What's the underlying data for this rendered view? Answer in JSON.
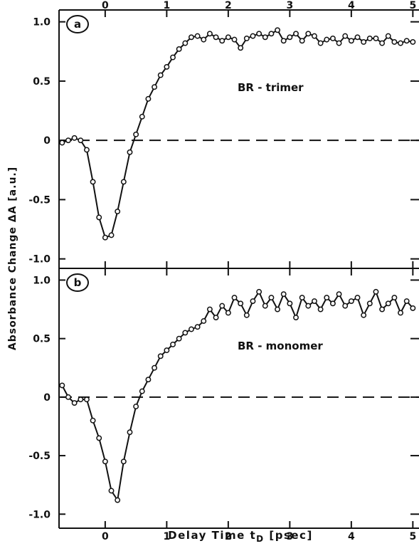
{
  "chart_data": {
    "type": "line",
    "xlabel": "Delay Time  t",
    "xlabel_sub": "D",
    "xlabel_unit": " [psec]",
    "ylabel": "Absorbance Change  ΔA [a.u.]",
    "xlim": [
      -0.75,
      5.1
    ],
    "x_ticks": [
      0,
      1,
      2,
      3,
      4,
      5
    ],
    "panels": [
      {
        "id": "a",
        "tag": "a",
        "annotation": "BR - trimer",
        "ylim": [
          -1.08,
          1.1
        ],
        "y_ticks": [
          1.0,
          0.5,
          0,
          -0.5,
          -1.0
        ],
        "y_tick_labels": [
          "1.0",
          "0.5",
          "0",
          "-0.5",
          "-1.0"
        ],
        "zero_line": true,
        "x": [
          -0.7,
          -0.6,
          -0.5,
          -0.4,
          -0.3,
          -0.2,
          -0.1,
          0.0,
          0.1,
          0.2,
          0.3,
          0.4,
          0.5,
          0.6,
          0.7,
          0.8,
          0.9,
          1.0,
          1.1,
          1.2,
          1.3,
          1.4,
          1.5,
          1.6,
          1.7,
          1.8,
          1.9,
          2.0,
          2.1,
          2.2,
          2.3,
          2.4,
          2.5,
          2.6,
          2.7,
          2.8,
          2.9,
          3.0,
          3.1,
          3.2,
          3.3,
          3.4,
          3.5,
          3.6,
          3.7,
          3.8,
          3.9,
          4.0,
          4.1,
          4.2,
          4.3,
          4.4,
          4.5,
          4.6,
          4.7,
          4.8,
          4.9,
          5.0
        ],
        "y": [
          -0.02,
          0.0,
          0.02,
          0.0,
          -0.08,
          -0.35,
          -0.65,
          -0.82,
          -0.8,
          -0.6,
          -0.35,
          -0.1,
          0.05,
          0.2,
          0.35,
          0.45,
          0.55,
          0.62,
          0.7,
          0.77,
          0.82,
          0.87,
          0.88,
          0.85,
          0.9,
          0.87,
          0.84,
          0.87,
          0.85,
          0.78,
          0.86,
          0.88,
          0.9,
          0.87,
          0.9,
          0.93,
          0.84,
          0.87,
          0.9,
          0.84,
          0.9,
          0.88,
          0.82,
          0.85,
          0.86,
          0.82,
          0.88,
          0.84,
          0.87,
          0.83,
          0.86,
          0.86,
          0.82,
          0.88,
          0.83,
          0.82,
          0.84,
          0.83
        ]
      },
      {
        "id": "b",
        "tag": "b",
        "annotation": "BR - monomer",
        "ylim": [
          -1.12,
          1.1
        ],
        "y_ticks": [
          1.0,
          0.5,
          0,
          -0.5,
          -1.0
        ],
        "y_tick_labels": [
          "1.0",
          "0.5",
          "0",
          "-0.5",
          "-1.0"
        ],
        "zero_line": true,
        "x": [
          -0.7,
          -0.6,
          -0.5,
          -0.4,
          -0.3,
          -0.2,
          -0.1,
          0.0,
          0.1,
          0.2,
          0.3,
          0.4,
          0.5,
          0.6,
          0.7,
          0.8,
          0.9,
          1.0,
          1.1,
          1.2,
          1.3,
          1.4,
          1.5,
          1.6,
          1.7,
          1.8,
          1.9,
          2.0,
          2.1,
          2.2,
          2.3,
          2.4,
          2.5,
          2.6,
          2.7,
          2.8,
          2.9,
          3.0,
          3.1,
          3.2,
          3.3,
          3.4,
          3.5,
          3.6,
          3.7,
          3.8,
          3.9,
          4.0,
          4.1,
          4.2,
          4.3,
          4.4,
          4.5,
          4.6,
          4.7,
          4.8,
          4.9,
          5.0
        ],
        "y": [
          0.1,
          0.0,
          -0.05,
          -0.02,
          -0.02,
          -0.2,
          -0.35,
          -0.55,
          -0.8,
          -0.88,
          -0.55,
          -0.3,
          -0.08,
          0.05,
          0.15,
          0.25,
          0.35,
          0.4,
          0.45,
          0.5,
          0.55,
          0.58,
          0.6,
          0.65,
          0.75,
          0.68,
          0.78,
          0.72,
          0.85,
          0.8,
          0.7,
          0.82,
          0.9,
          0.78,
          0.85,
          0.75,
          0.88,
          0.8,
          0.68,
          0.85,
          0.78,
          0.82,
          0.75,
          0.85,
          0.8,
          0.88,
          0.78,
          0.82,
          0.85,
          0.7,
          0.8,
          0.9,
          0.75,
          0.8,
          0.85,
          0.72,
          0.82,
          0.76
        ]
      }
    ]
  }
}
